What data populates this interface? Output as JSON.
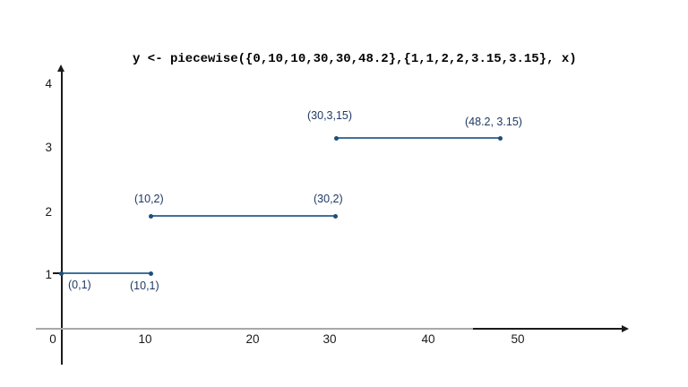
{
  "chart_data": {
    "type": "line",
    "title": "y <- piecewise({0,10,10,30,30,48.2},{1,1,2,2,3.15,3.15}, x)",
    "xlabel": "",
    "ylabel": "",
    "xlim": [
      0,
      62
    ],
    "ylim": [
      0,
      4.3
    ],
    "grid": false,
    "x_tick_labels": [
      "0",
      "10",
      "20",
      "30",
      "40",
      "50"
    ],
    "y_tick_labels": [
      "1",
      "2",
      "3",
      "4"
    ],
    "segments": [
      {
        "x": [
          0,
          10
        ],
        "y": [
          1,
          1
        ],
        "point_labels": [
          "(0,1)",
          "(10,1)"
        ]
      },
      {
        "x": [
          10,
          30
        ],
        "y": [
          2,
          2
        ],
        "point_labels": [
          "(10,2)",
          "(30,2)"
        ]
      },
      {
        "x": [
          30,
          48.2
        ],
        "y": [
          3.15,
          3.15
        ],
        "point_labels": [
          "(30,3,15)",
          "(48.2, 3.15)"
        ]
      }
    ],
    "colors": {
      "line": "#41719C",
      "point": "#1F4E79",
      "annotation": "#1F3864",
      "axis_dark": "#1a1a1a",
      "axis_light": "#a8a8a8",
      "background": "#ffffff"
    }
  }
}
